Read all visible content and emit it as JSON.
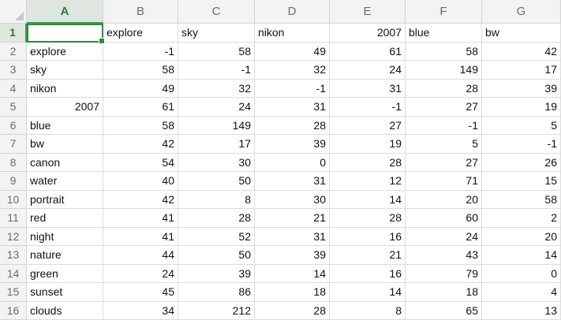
{
  "columns": [
    "A",
    "B",
    "C",
    "D",
    "E",
    "F",
    "G"
  ],
  "active_column": "A",
  "active_row": "1",
  "rows": [
    {
      "num": "1",
      "cells": [
        "",
        "explore",
        "sky",
        "nikon",
        "2007",
        "blue",
        "bw"
      ]
    },
    {
      "num": "2",
      "cells": [
        "explore",
        "-1",
        "58",
        "49",
        "61",
        "58",
        "42"
      ]
    },
    {
      "num": "3",
      "cells": [
        "sky",
        "58",
        "-1",
        "32",
        "24",
        "149",
        "17"
      ]
    },
    {
      "num": "4",
      "cells": [
        "nikon",
        "49",
        "32",
        "-1",
        "31",
        "28",
        "39"
      ]
    },
    {
      "num": "5",
      "cells": [
        "2007",
        "61",
        "24",
        "31",
        "-1",
        "27",
        "19"
      ]
    },
    {
      "num": "6",
      "cells": [
        "blue",
        "58",
        "149",
        "28",
        "27",
        "-1",
        "5"
      ]
    },
    {
      "num": "7",
      "cells": [
        "bw",
        "42",
        "17",
        "39",
        "19",
        "5",
        "-1"
      ]
    },
    {
      "num": "8",
      "cells": [
        "canon",
        "54",
        "30",
        "0",
        "28",
        "27",
        "26"
      ]
    },
    {
      "num": "9",
      "cells": [
        "water",
        "40",
        "50",
        "31",
        "12",
        "71",
        "15"
      ]
    },
    {
      "num": "10",
      "cells": [
        "portrait",
        "42",
        "8",
        "30",
        "14",
        "20",
        "58"
      ]
    },
    {
      "num": "11",
      "cells": [
        "red",
        "41",
        "28",
        "21",
        "28",
        "60",
        "2"
      ]
    },
    {
      "num": "12",
      "cells": [
        "night",
        "41",
        "52",
        "31",
        "16",
        "24",
        "20"
      ]
    },
    {
      "num": "13",
      "cells": [
        "nature",
        "44",
        "50",
        "39",
        "21",
        "43",
        "14"
      ]
    },
    {
      "num": "14",
      "cells": [
        "green",
        "24",
        "39",
        "14",
        "16",
        "79",
        "0"
      ]
    },
    {
      "num": "15",
      "cells": [
        "sunset",
        "45",
        "86",
        "18",
        "14",
        "18",
        "4"
      ]
    },
    {
      "num": "16",
      "cells": [
        "clouds",
        "34",
        "212",
        "28",
        "8",
        "65",
        "13"
      ]
    }
  ]
}
